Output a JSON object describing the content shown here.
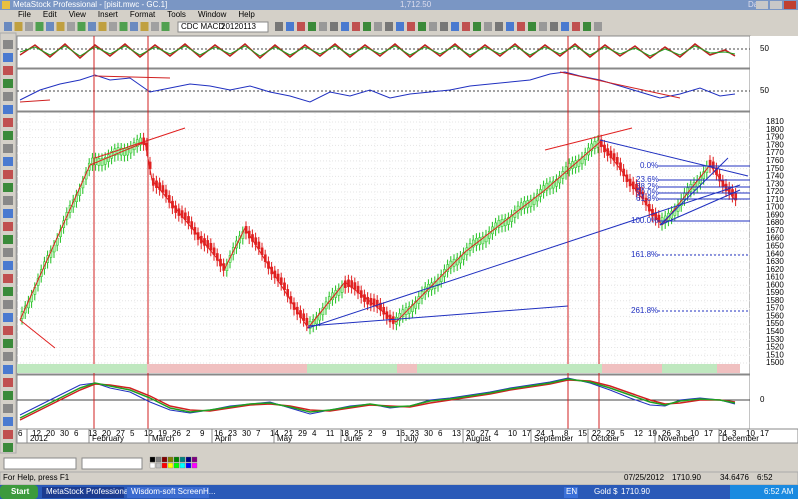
{
  "window": {
    "title": "MetaStock Professional - [pisit.mwc - GC.1]",
    "title_right": "1,712.50",
    "period": "Daily",
    "menu": [
      "File",
      "Edit",
      "View",
      "Insert",
      "Format",
      "Tools",
      "Window",
      "Help"
    ]
  },
  "toolbar": {
    "indicator": "CDC MACD",
    "date": "20120113"
  },
  "panes": {
    "stoch_label": "50",
    "rsi_label": "50",
    "macd_label": "0"
  },
  "price_axis": [
    1810,
    1800,
    1790,
    1780,
    1770,
    1760,
    1750,
    1740,
    1730,
    1720,
    1710,
    1700,
    1690,
    1680,
    1670,
    1660,
    1650,
    1640,
    1630,
    1620,
    1610,
    1600,
    1590,
    1580,
    1570,
    1560,
    1550,
    1540,
    1530,
    1520,
    1510,
    1500
  ],
  "fib_levels": [
    "0.0%",
    "23.6%",
    "38.2%",
    "50.0%",
    "61.8%",
    "100.0%",
    "161.8%",
    "261.8%"
  ],
  "date_axis": {
    "days": [
      "6",
      "12",
      "20",
      "30",
      "6",
      "13",
      "20",
      "27",
      "5",
      "12",
      "19",
      "26",
      "2",
      "9",
      "16",
      "23",
      "30",
      "7",
      "14",
      "21",
      "29",
      "4",
      "11",
      "18",
      "25",
      "2",
      "9",
      "16",
      "23",
      "30",
      "6",
      "13",
      "20",
      "27",
      "4",
      "10",
      "17",
      "24",
      "1",
      "8",
      "15",
      "22",
      "29",
      "5",
      "12",
      "19",
      "26",
      "3",
      "10",
      "17",
      "24",
      "3",
      "10",
      "17"
    ],
    "months": [
      "2012",
      "February",
      "March",
      "April",
      "May",
      "June",
      "July",
      "August",
      "September",
      "October",
      "November",
      "December"
    ]
  },
  "status": {
    "help": "For Help, press F1",
    "date": "07/25/2012",
    "price": "1710.90",
    "value": "34.6476",
    "time": "6:52"
  },
  "taskbar": {
    "start": "Start",
    "tasks": [
      "MetaStock Professional -...",
      "Wisdom-soft ScreenH..."
    ],
    "lang": "EN",
    "ticker": "Gold $",
    "price": "1710.90",
    "clock": "6:52 AM"
  }
}
